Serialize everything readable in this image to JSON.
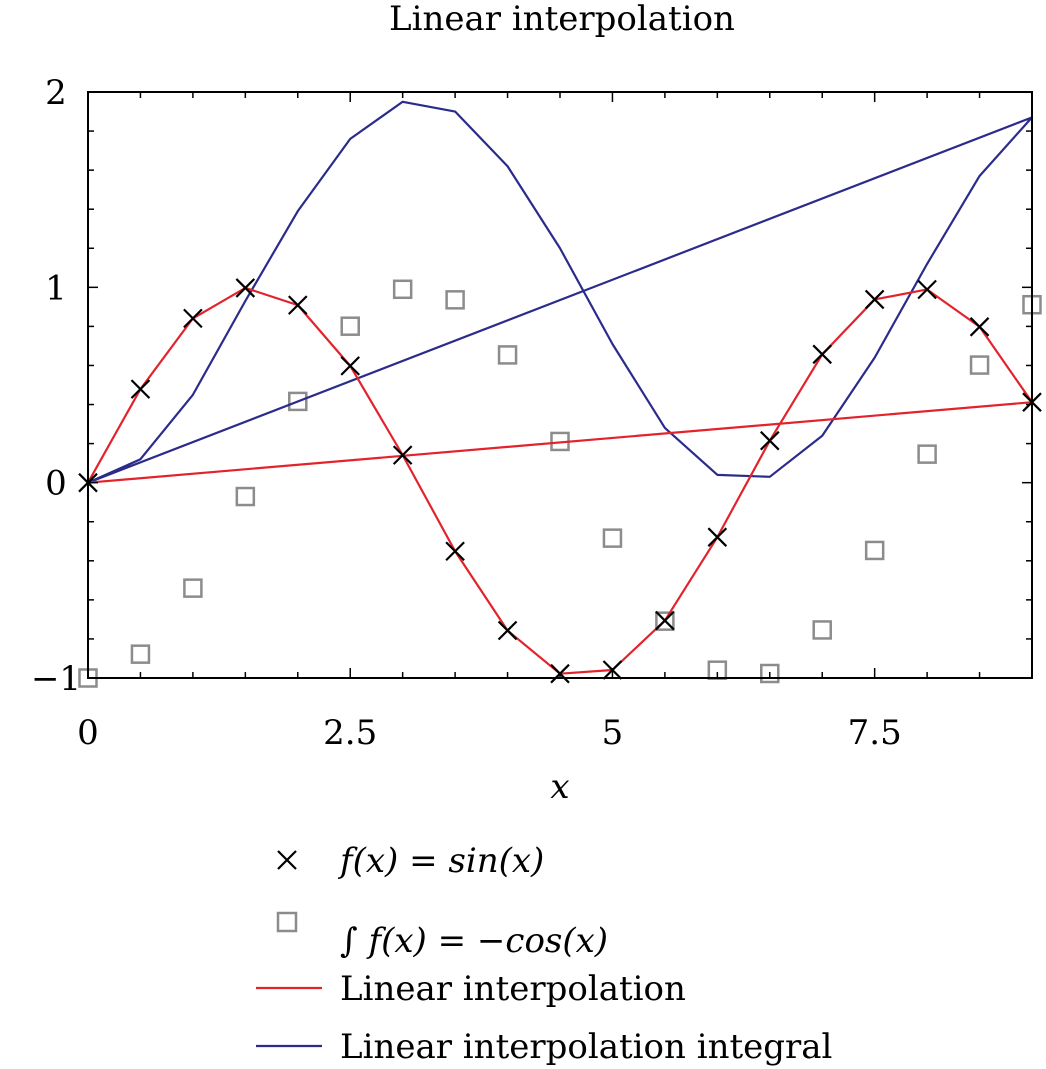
{
  "chart_data": {
    "type": "line",
    "title": "Linear interpolation",
    "xlabel": "x",
    "ylabel": "",
    "xlim": [
      0,
      9
    ],
    "ylim": [
      -1,
      2
    ],
    "grid": false,
    "legend_position": "bottom",
    "x_ticks": [
      {
        "value": 0,
        "label": "0"
      },
      {
        "value": 2.5,
        "label": "2.5"
      },
      {
        "value": 5,
        "label": "5"
      },
      {
        "value": 7.5,
        "label": "7.5"
      }
    ],
    "y_ticks": [
      {
        "value": -1,
        "label": "−1"
      },
      {
        "value": 0,
        "label": "0"
      },
      {
        "value": 1,
        "label": "1"
      },
      {
        "value": 2,
        "label": "2"
      }
    ],
    "series": [
      {
        "name": "f(x) = sin(x)",
        "kind": "markers",
        "marker": "cross",
        "color": "#000000",
        "points": [
          [
            0,
            0
          ],
          [
            0.5,
            0.479
          ],
          [
            1,
            0.841
          ],
          [
            1.5,
            0.997
          ],
          [
            2,
            0.909
          ],
          [
            2.5,
            0.598
          ],
          [
            3,
            0.141
          ],
          [
            3.5,
            -0.351
          ],
          [
            4,
            -0.757
          ],
          [
            4.5,
            -0.978
          ],
          [
            5,
            -0.959
          ],
          [
            5.5,
            -0.706
          ],
          [
            6,
            -0.279
          ],
          [
            6.5,
            0.215
          ],
          [
            7,
            0.657
          ],
          [
            7.5,
            0.938
          ],
          [
            8,
            0.989
          ],
          [
            8.5,
            0.798
          ],
          [
            9,
            0.412
          ]
        ]
      },
      {
        "name": "∫ f(x) = −cos(x)",
        "kind": "markers",
        "marker": "square",
        "color": "#8c8c8c",
        "points": [
          [
            0,
            -1
          ],
          [
            0.5,
            -0.878
          ],
          [
            1,
            -0.54
          ],
          [
            1.5,
            -0.071
          ],
          [
            2,
            0.416
          ],
          [
            2.5,
            0.801
          ],
          [
            3,
            0.99
          ],
          [
            3.5,
            0.936
          ],
          [
            4,
            0.654
          ],
          [
            4.5,
            0.211
          ],
          [
            5,
            -0.284
          ],
          [
            5.5,
            -0.709
          ],
          [
            6,
            -0.96
          ],
          [
            6.5,
            -0.977
          ],
          [
            7,
            -0.754
          ],
          [
            7.5,
            -0.347
          ],
          [
            8,
            0.146
          ],
          [
            8.5,
            0.602
          ],
          [
            9,
            0.911
          ]
        ]
      },
      {
        "name": "Linear interpolation",
        "kind": "line",
        "color": "#e3232c",
        "points": [
          [
            0,
            0
          ],
          [
            0.5,
            0.479
          ],
          [
            1,
            0.841
          ],
          [
            1.5,
            0.997
          ],
          [
            2,
            0.909
          ],
          [
            2.5,
            0.598
          ],
          [
            3,
            0.141
          ],
          [
            3.5,
            -0.351
          ],
          [
            4,
            -0.757
          ],
          [
            4.5,
            -0.978
          ],
          [
            5,
            -0.959
          ],
          [
            5.5,
            -0.706
          ],
          [
            6,
            -0.279
          ],
          [
            6.5,
            0.215
          ],
          [
            7,
            0.657
          ],
          [
            7.5,
            0.938
          ],
          [
            8,
            0.989
          ],
          [
            8.5,
            0.798
          ],
          [
            9,
            0.412
          ],
          [
            0,
            0
          ]
        ]
      },
      {
        "name": "Linear interpolation integral",
        "kind": "line",
        "color": "#2b2b8c",
        "points": [
          [
            0,
            0
          ],
          [
            0.5,
            0.12
          ],
          [
            1,
            0.45
          ],
          [
            1.5,
            0.93
          ],
          [
            2,
            1.39
          ],
          [
            2.5,
            1.76
          ],
          [
            3,
            1.95
          ],
          [
            3.5,
            1.9
          ],
          [
            4,
            1.62
          ],
          [
            4.5,
            1.2
          ],
          [
            5,
            0.71
          ],
          [
            5.5,
            0.28
          ],
          [
            6,
            0.04
          ],
          [
            6.5,
            0.03
          ],
          [
            7,
            0.24
          ],
          [
            7.5,
            0.64
          ],
          [
            8,
            1.12
          ],
          [
            8.5,
            1.57
          ],
          [
            9,
            1.87
          ],
          [
            0,
            0
          ]
        ]
      }
    ]
  }
}
